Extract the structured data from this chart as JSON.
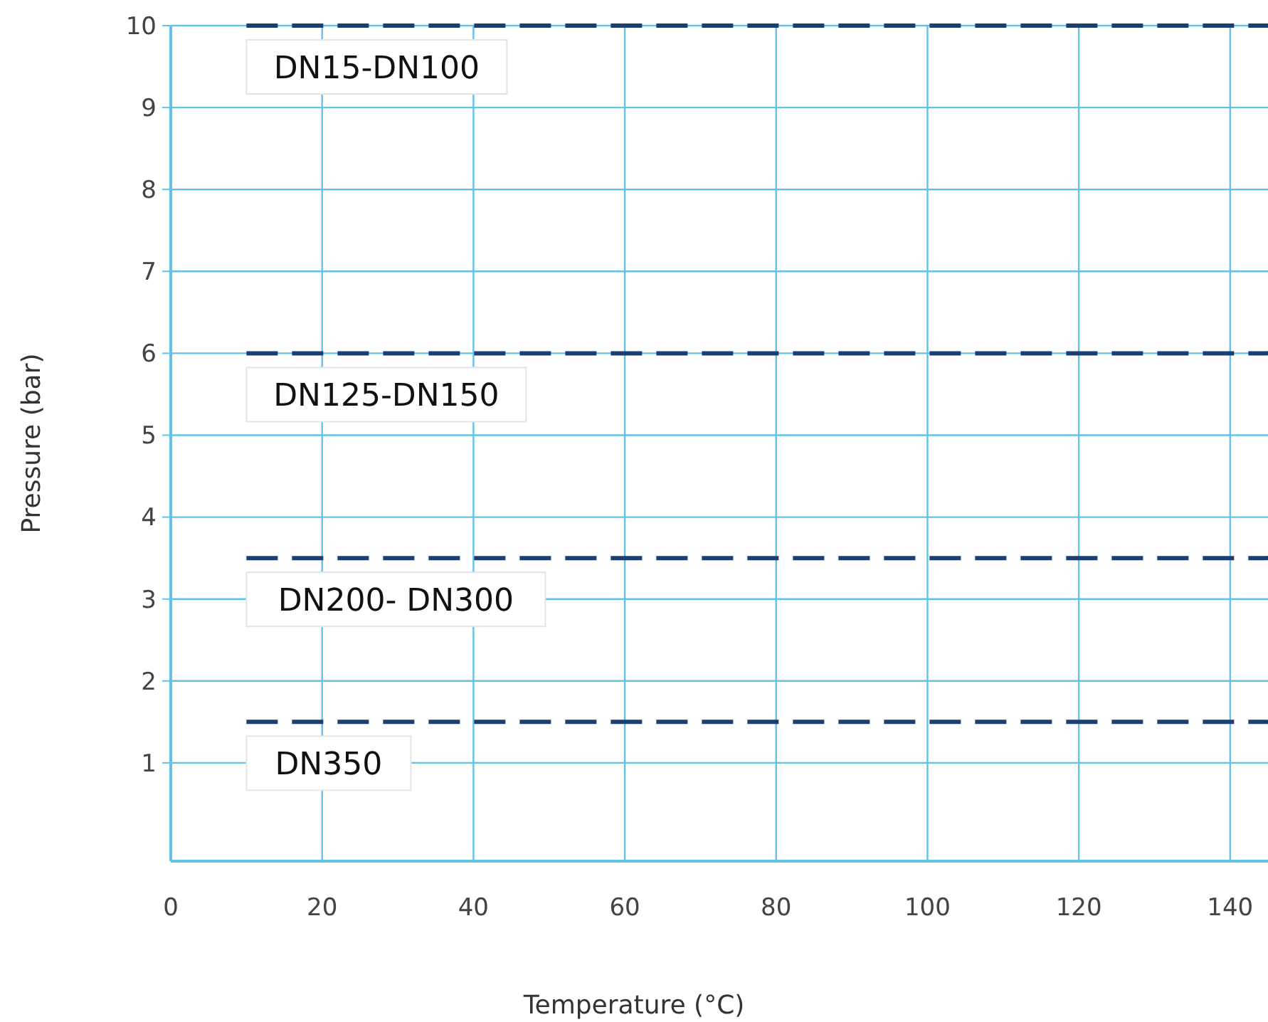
{
  "chart_data": {
    "type": "line",
    "xlabel": "Temperature (°C)",
    "ylabel": "Pressure (bar)",
    "xlim": [
      0,
      145
    ],
    "xticks": [
      0,
      20,
      40,
      60,
      80,
      100,
      120,
      140
    ],
    "ylim": [
      -0.2,
      10
    ],
    "yticks": [
      1,
      2,
      3,
      4,
      5,
      6,
      7,
      8,
      9,
      10
    ],
    "grid": true,
    "marker": "none",
    "line_style": "dashed",
    "x": [
      10,
      145
    ],
    "series": [
      {
        "name": "DN15-DN100",
        "color": "#1b3f73",
        "values": [
          10,
          10
        ]
      },
      {
        "name": "DN125-DN150",
        "color": "#1b3f73",
        "values": [
          6,
          6
        ]
      },
      {
        "name": "DN200- DN300",
        "color": "#1b3f73",
        "values": [
          3.5,
          3.5
        ]
      },
      {
        "name": "DN350",
        "color": "#1b3f73",
        "values": [
          1.5,
          1.5
        ]
      }
    ]
  }
}
